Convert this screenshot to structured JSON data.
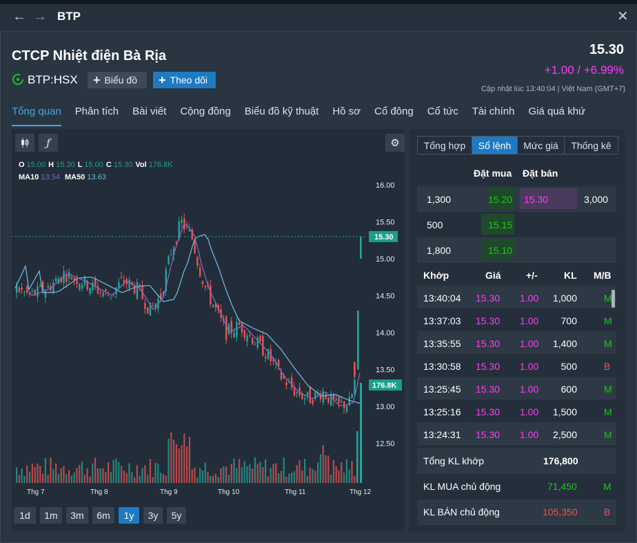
{
  "window": {
    "title": "BTP"
  },
  "header": {
    "company_name": "CTCP Nhiệt điện Bà Rịa",
    "ticker": "BTP:HSX",
    "chart_button": "Biểu đồ",
    "follow_button": "Theo dõi",
    "price": "15.30",
    "change": "+1.00 / +6.99%",
    "updated": "Cập nhật lúc  13:40:04 | Việt Nam (GMT+7)"
  },
  "tabs": [
    "Tổng quan",
    "Phân tích",
    "Bài viết",
    "Cộng đồng",
    "Biểu đồ kỹ thuật",
    "Hồ sơ",
    "Cổ đông",
    "Cổ tức",
    "Tài chính",
    "Giá quá khứ"
  ],
  "chart": {
    "ohlc": {
      "o_label": "O",
      "o": "15.00",
      "h_label": "H",
      "h": "15.30",
      "l_label": "L",
      "l": "15.00",
      "c_label": "C",
      "c": "15.30",
      "vol_label": "Vol",
      "vol": "176.8K"
    },
    "ma": {
      "ma10_label": "MA10",
      "ma10": "13.54",
      "ma50_label": "MA50",
      "ma50": "13.63"
    },
    "price_tag": "15.30",
    "volume_tag": "176.8K",
    "ranges": [
      "1d",
      "1m",
      "3m",
      "6m",
      "1y",
      "3y",
      "5y"
    ],
    "active_range": "1y"
  },
  "chart_data": {
    "type": "candlestick",
    "y_ticks": [
      16.0,
      15.5,
      15.0,
      14.5,
      14.0,
      13.5,
      13.0,
      12.5
    ],
    "x_ticks": [
      "Thg 7",
      "Thg 8",
      "Thg 9",
      "Thg 10",
      "Thg 11",
      "Thg 12"
    ],
    "ylim": [
      12.2,
      16.2
    ],
    "last_close": 15.3,
    "last_volume": "176.8K",
    "ma10_last": 13.54,
    "ma50_last": 13.63,
    "colors": {
      "up": "#26a69a",
      "down": "#ef5350",
      "ma10": "#7f6bc2",
      "ma50": "#6bb6e3"
    }
  },
  "orderbook": {
    "tabs": [
      "Tổng hợp",
      "Sổ lệnh",
      "Mức giá",
      "Thống kê"
    ],
    "active_tab": "Sổ lệnh",
    "bid_header": "Đặt mua",
    "ask_header": "Đặt bán",
    "levels": [
      {
        "bid_vol": "1,300",
        "bid_price": "15.20",
        "ask_price": "15.30",
        "ask_vol": "3,000"
      },
      {
        "bid_vol": "500",
        "bid_price": "15.15",
        "ask_price": "",
        "ask_vol": ""
      },
      {
        "bid_vol": "1,800",
        "bid_price": "15.10",
        "ask_price": "",
        "ask_vol": ""
      }
    ],
    "match_headers": {
      "time": "Khớp",
      "price": "Giá",
      "change": "+/-",
      "vol": "KL",
      "side": "M/B"
    },
    "matches": [
      {
        "time": "13:40:04",
        "price": "15.30",
        "change": "1.00",
        "vol": "1,000",
        "side": "M"
      },
      {
        "time": "13:37:03",
        "price": "15.30",
        "change": "1.00",
        "vol": "700",
        "side": "M"
      },
      {
        "time": "13:35:55",
        "price": "15.30",
        "change": "1.00",
        "vol": "1,400",
        "side": "M"
      },
      {
        "time": "13:30:58",
        "price": "15.30",
        "change": "1.00",
        "vol": "500",
        "side": "B"
      },
      {
        "time": "13:25:45",
        "price": "15.30",
        "change": "1.00",
        "vol": "600",
        "side": "M"
      },
      {
        "time": "13:25:16",
        "price": "15.30",
        "change": "1.00",
        "vol": "1,500",
        "side": "M"
      },
      {
        "time": "13:24:31",
        "price": "15.30",
        "change": "1.00",
        "vol": "2,500",
        "side": "M"
      }
    ],
    "summary": {
      "total_label": "Tổng KL khớp",
      "total": "176,800",
      "buy_label": "KL MUA chủ động",
      "buy": "71,450",
      "buy_side": "M",
      "sell_label": "KL BÁN chủ động",
      "sell": "105,350",
      "sell_side": "B"
    }
  }
}
